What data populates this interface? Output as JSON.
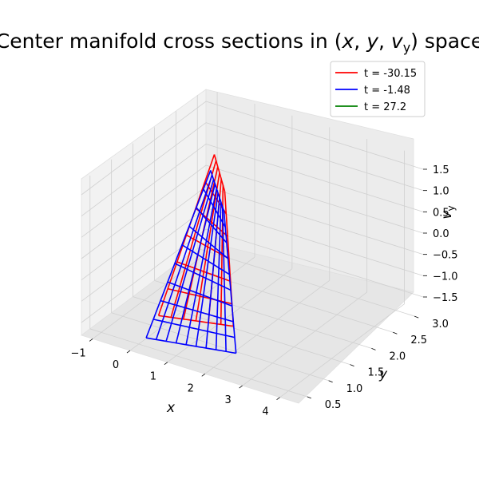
{
  "chart_data": {
    "type": "wireframe3d",
    "title": "Center manifold cross sections in (x, y, v_y) space",
    "xlabel": "x",
    "ylabel": "y",
    "zlabel": "v_y",
    "xlim": [
      -1.3,
      4.5
    ],
    "ylim": [
      0.3,
      3.2
    ],
    "zlim": [
      -1.8,
      1.8
    ],
    "x_ticks": [
      "−1",
      "0",
      "1",
      "2",
      "3",
      "4"
    ],
    "y_ticks": [
      "0.5",
      "1.0",
      "1.5",
      "2.0",
      "2.5",
      "3.0"
    ],
    "z_ticks": [
      "1.5",
      "1.0",
      "0.5",
      "0.0",
      "−0.5",
      "−1.0",
      "−1.5"
    ],
    "grid": true,
    "legend_position": "top-right",
    "legend": [
      {
        "label": "t = -30.15",
        "color": "#ff0000"
      },
      {
        "label": "t = -1.48",
        "color": "#0000ff"
      },
      {
        "label": "t = 27.2",
        "color": "#008000"
      }
    ],
    "series": [
      {
        "name": "t = -30.15",
        "color": "#ff0000",
        "x_range": [
          0.3,
          2.3
        ],
        "y_range": [
          0.7,
          2.0
        ],
        "vy_range": [
          -1.2,
          1.6
        ],
        "grid_lines": 6
      },
      {
        "name": "t = -1.48",
        "color": "#0000ff",
        "x_range": [
          0.2,
          2.6
        ],
        "y_range": [
          0.5,
          2.0
        ],
        "vy_range": [
          -1.6,
          1.2
        ],
        "grid_lines": 9
      },
      {
        "name": "t = 27.2",
        "color": "#008000",
        "x_range": [],
        "y_range": [],
        "vy_range": [],
        "grid_lines": 0
      }
    ]
  }
}
